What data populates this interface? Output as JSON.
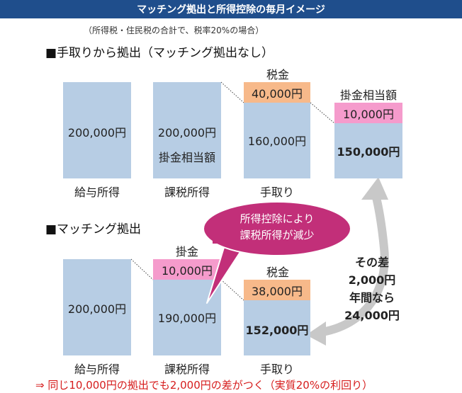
{
  "title": "マッチング拠出と所得控除の毎月イメージ",
  "note": "（所得税・住民税の合計で、税率20%の場合）",
  "section1": {
    "heading": "■手取りから拠出（マッチング拠出なし）",
    "salary_value": "200,000円",
    "salary_label": "給与所得",
    "taxable_value": "200,000円",
    "taxable_inner": "掛金相当額",
    "taxable_label": "課税所得",
    "tax_header": "税金",
    "tax_value": "40,000円",
    "net_value": "160,000円",
    "net_label": "手取り",
    "contrib_header": "掛金相当額",
    "contrib_value": "10,000円",
    "final_value": "150,000円"
  },
  "section2": {
    "heading": "■マッチング拠出",
    "salary_value": "200,000円",
    "salary_label": "給与所得",
    "contrib_header": "掛金",
    "contrib_value": "10,000円",
    "taxable_value": "190,000円",
    "taxable_label": "課税所得",
    "tax_header": "税金",
    "tax_value": "38,000円",
    "net_value": "152,000円",
    "net_label": "手取り"
  },
  "callout": {
    "line1": "所得控除により",
    "line2": "課税所得が減少"
  },
  "difference": {
    "line1": "その差",
    "line2": "2,000円",
    "line3": "年間なら",
    "line4": "24,000円"
  },
  "footer": "⇒ 同じ10,000円の拠出でも2,000円の差がつく（実質20%の利回り）",
  "colors": {
    "banner": "#1f4e8c",
    "bar": "#b7cde4",
    "tax": "#f7b98a",
    "contribution": "#f59bcc",
    "callout": "#c22f79",
    "arrow": "#c8c8c8",
    "footer_text": "#d61c1c"
  }
}
